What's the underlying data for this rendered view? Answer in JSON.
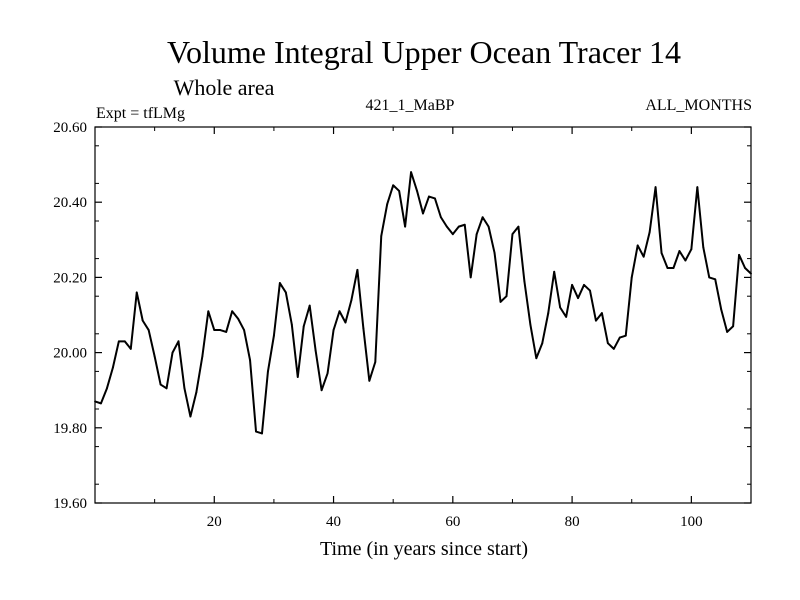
{
  "chart_data": {
    "type": "line",
    "title": "Volume Integral Upper Ocean Tracer 14",
    "subtitle": "Whole area",
    "left_note": "Expt = tfLMg",
    "center_note": "421_1_MaBP",
    "right_note": "ALL_MONTHS",
    "xlabel": "Time (in years since start)",
    "ylabel": "",
    "xlim": [
      0,
      110
    ],
    "ylim": [
      19.6,
      20.6
    ],
    "xticks": [
      20,
      40,
      60,
      80,
      100
    ],
    "xtick_labels": [
      "20",
      "40",
      "60",
      "80",
      "100"
    ],
    "yticks": [
      19.6,
      19.8,
      20.0,
      20.2,
      20.4,
      20.6
    ],
    "ytick_labels": [
      "19.60",
      "19.80",
      "20.00",
      "20.20",
      "20.40",
      "20.60"
    ],
    "grid": false,
    "series": [
      {
        "name": "Tracer 14",
        "x": [
          0,
          1,
          2,
          3,
          4,
          5,
          6,
          7,
          8,
          9,
          10,
          11,
          12,
          13,
          14,
          15,
          16,
          17,
          18,
          19,
          20,
          21,
          22,
          23,
          24,
          25,
          26,
          27,
          28,
          29,
          30,
          31,
          32,
          33,
          34,
          35,
          36,
          37,
          38,
          39,
          40,
          41,
          42,
          43,
          44,
          45,
          46,
          47,
          48,
          49,
          50,
          51,
          52,
          53,
          54,
          55,
          56,
          57,
          58,
          59,
          60,
          61,
          62,
          63,
          64,
          65,
          66,
          67,
          68,
          69,
          70,
          71,
          72,
          73,
          74,
          75,
          76,
          77,
          78,
          79,
          80,
          81,
          82,
          83,
          84,
          85,
          86,
          87,
          88,
          89,
          90,
          91,
          92,
          93,
          94,
          95,
          96,
          97,
          98,
          99,
          100,
          101,
          102,
          103,
          104,
          105,
          106,
          107,
          108,
          109,
          110
        ],
        "values": [
          19.87,
          19.865,
          19.905,
          19.96,
          20.03,
          20.03,
          20.01,
          20.16,
          20.085,
          20.06,
          19.99,
          19.915,
          19.905,
          20.0,
          20.03,
          19.905,
          19.83,
          19.895,
          19.99,
          20.11,
          20.06,
          20.06,
          20.055,
          20.11,
          20.09,
          20.06,
          19.98,
          19.79,
          19.785,
          19.95,
          20.045,
          20.185,
          20.16,
          20.075,
          19.935,
          20.07,
          20.125,
          20.005,
          19.9,
          19.945,
          20.06,
          20.11,
          20.08,
          20.14,
          20.22,
          20.065,
          19.925,
          19.975,
          20.31,
          20.395,
          20.445,
          20.43,
          20.335,
          20.48,
          20.43,
          20.37,
          20.415,
          20.41,
          20.36,
          20.335,
          20.315,
          20.335,
          20.34,
          20.2,
          20.315,
          20.36,
          20.335,
          20.265,
          20.135,
          20.15,
          20.315,
          20.335,
          20.19,
          20.075,
          19.985,
          20.025,
          20.105,
          20.215,
          20.12,
          20.095,
          20.18,
          20.145,
          20.18,
          20.165,
          20.085,
          20.105,
          20.025,
          20.01,
          20.04,
          20.045,
          20.2,
          20.285,
          20.255,
          20.32,
          20.44,
          20.265,
          20.225,
          20.225,
          20.27,
          20.245,
          20.275,
          20.44,
          20.28,
          20.2,
          20.195,
          20.115,
          20.055,
          20.07,
          20.26,
          20.225,
          20.21
        ]
      }
    ]
  }
}
